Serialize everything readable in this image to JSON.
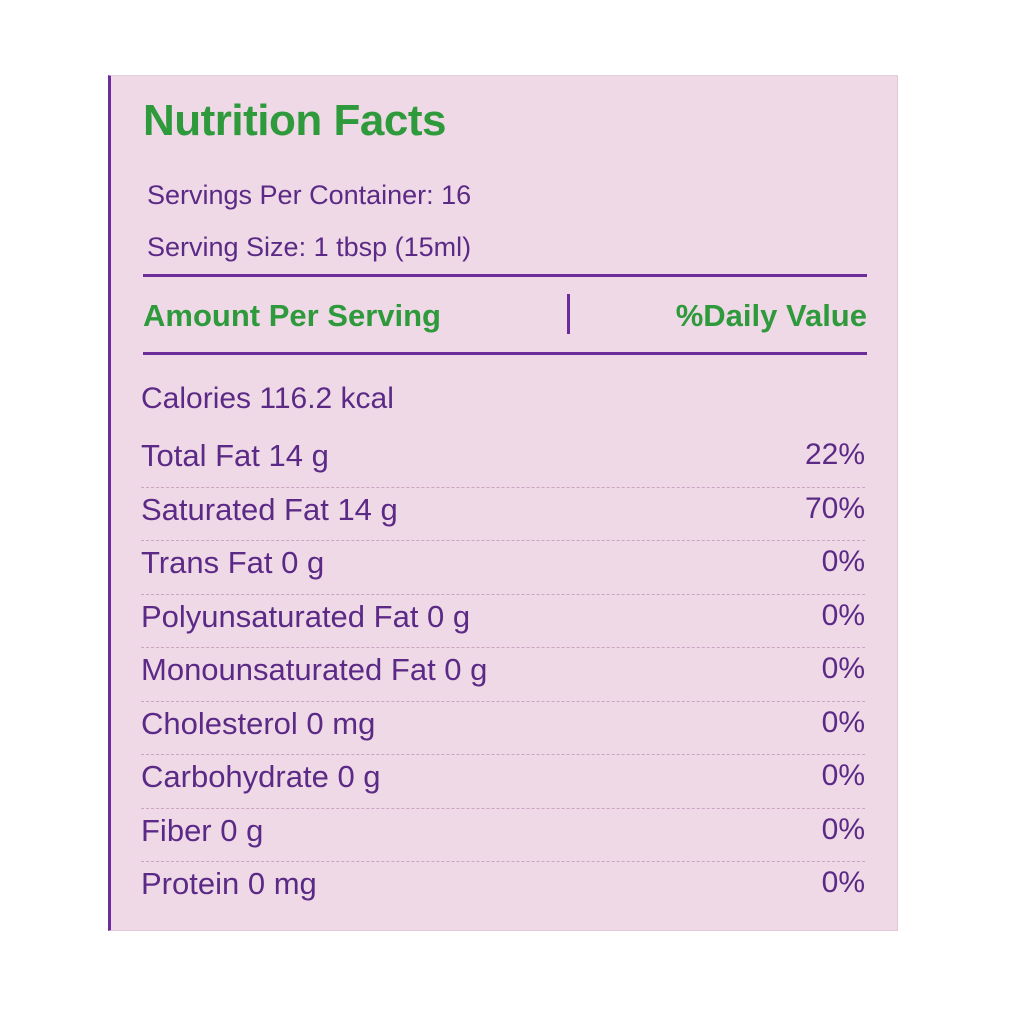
{
  "label": {
    "title": "Nutrition Facts",
    "servings_per_container": "Servings Per Container: 16",
    "serving_size": "Serving Size: 1 tbsp (15ml)",
    "header_amount": "Amount Per Serving",
    "header_daily_value": "%Daily Value",
    "calories": "Calories 116.2 kcal",
    "nutrients": [
      {
        "name": "Total Fat 14 g",
        "dv": "22%"
      },
      {
        "name": "Saturated Fat 14 g",
        "dv": "70%"
      },
      {
        "name": "Trans Fat 0 g",
        "dv": "0%"
      },
      {
        "name": "Polyunsaturated Fat 0 g",
        "dv": "0%"
      },
      {
        "name": "Monounsaturated Fat 0 g",
        "dv": "0%"
      },
      {
        "name": "Cholesterol 0 mg",
        "dv": "0%"
      },
      {
        "name": "Carbohydrate 0 g",
        "dv": "0%"
      },
      {
        "name": "Fiber 0 g",
        "dv": "0%"
      },
      {
        "name": "Protein 0 mg",
        "dv": "0%"
      }
    ]
  },
  "colors": {
    "background": "#efd9e6",
    "heading_green": "#2e9a3c",
    "text_purple": "#5b2a86",
    "rule_purple": "#6c2c9a"
  }
}
